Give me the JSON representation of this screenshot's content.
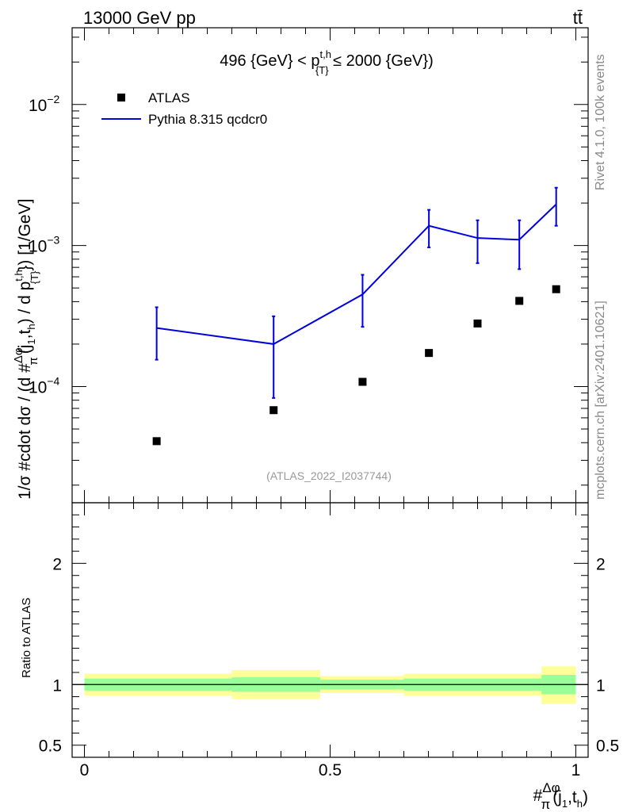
{
  "header": {
    "left": "13000 GeV pp",
    "right": "tt̄"
  },
  "side_labels": {
    "top": "Rivet 4.1.0,  100k events",
    "bottom": "mcplots.cern.ch [arXiv:2401.10621]"
  },
  "chart_data": [
    {
      "type": "scatter",
      "panel": "main",
      "title_parts": [
        "496 {GeV} < p",
        "t,h",
        "{T}",
        " ≤ 2000 {GeV})"
      ],
      "ylabel_parts": [
        "1/σ #cdot dσ / (d #",
        "Δφ",
        "π",
        "(j",
        "1",
        ",t",
        "h",
        ") / d p",
        "t,h",
        "{T}",
        "}) [1/GeV]"
      ],
      "yscale": "log",
      "ylim": [
        1.5e-05,
        0.035
      ],
      "xlim": [
        -0.025,
        1.025
      ],
      "ytick_labels": [
        {
          "value": 0.01,
          "base": "10",
          "exp": "−2"
        },
        {
          "value": 0.001,
          "base": "10",
          "exp": "−3"
        },
        {
          "value": 0.0001,
          "base": "10",
          "exp": "−4"
        }
      ],
      "legend": [
        {
          "label": "ATLAS",
          "marker": "square",
          "color": "#000000"
        },
        {
          "label": "Pythia 8.315 qcdcr0",
          "marker": "line",
          "color": "#0000dd"
        }
      ],
      "watermark": "(ATLAS_2022_I2037744)",
      "series": [
        {
          "name": "ATLAS",
          "x": [
            0.147,
            0.385,
            0.566,
            0.701,
            0.8,
            0.885,
            0.96
          ],
          "y": [
            4.1e-05,
            6.8e-05,
            0.000108,
            0.000173,
            0.00028,
            0.000405,
            0.00049
          ]
        },
        {
          "name": "Pythia 8.315 qcdcr0",
          "x": [
            0.147,
            0.385,
            0.566,
            0.701,
            0.8,
            0.885,
            0.96
          ],
          "y": [
            0.00026,
            0.0002,
            0.00045,
            0.00138,
            0.00113,
            0.0011,
            0.00196
          ],
          "yerr_low": [
            0.000155,
            8.3e-05,
            0.000265,
            0.00097,
            0.00075,
            0.00068,
            0.00138
          ],
          "yerr_high": [
            0.000365,
            0.000315,
            0.00062,
            0.00179,
            0.00151,
            0.00151,
            0.00257
          ]
        }
      ]
    },
    {
      "type": "area",
      "panel": "ratio",
      "ylabel": "Ratio to ATLAS",
      "xlabel_parts": [
        "#",
        "Δφ",
        "π",
        "(j",
        "1",
        ",t",
        "h",
        ")"
      ],
      "ylim": [
        0.4,
        2.5
      ],
      "yticks": [
        0.5,
        1,
        2
      ],
      "ytick_labels": [
        "0.5",
        "1",
        "2"
      ],
      "xticks": [
        0,
        0.5,
        1
      ],
      "xtick_labels": [
        "0",
        "0.5",
        "1"
      ],
      "bins": [
        {
          "x0": 0.0,
          "x1": 0.3,
          "inner": [
            0.95,
            1.05
          ],
          "outer": [
            0.91,
            1.09
          ]
        },
        {
          "x0": 0.3,
          "x1": 0.48,
          "inner": [
            0.94,
            1.06
          ],
          "outer": [
            0.88,
            1.12
          ]
        },
        {
          "x0": 0.48,
          "x1": 0.65,
          "inner": [
            0.96,
            1.04
          ],
          "outer": [
            0.93,
            1.07
          ]
        },
        {
          "x0": 0.65,
          "x1": 0.75,
          "inner": [
            0.95,
            1.05
          ],
          "outer": [
            0.91,
            1.09
          ]
        },
        {
          "x0": 0.75,
          "x1": 0.85,
          "inner": [
            0.95,
            1.05
          ],
          "outer": [
            0.91,
            1.09
          ]
        },
        {
          "x0": 0.85,
          "x1": 0.93,
          "inner": [
            0.95,
            1.05
          ],
          "outer": [
            0.91,
            1.09
          ]
        },
        {
          "x0": 0.93,
          "x1": 1.0,
          "inner": [
            0.92,
            1.08
          ],
          "outer": [
            0.84,
            1.15
          ]
        }
      ],
      "colors": {
        "inner": "#99ff99",
        "outer": "#ffff99",
        "line": "#000000"
      }
    }
  ]
}
